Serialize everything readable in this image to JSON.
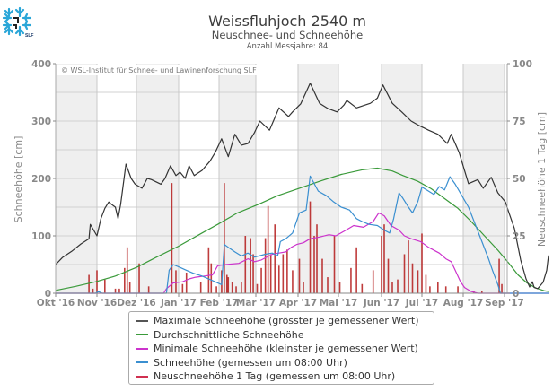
{
  "header": {
    "title": "Weissfluhjoch 2540 m",
    "subtitle": "Neuschnee- und Schneehöhe",
    "years_label": "Anzahl Messjahre: 84",
    "logo_icon": "snowflake-slf-logo"
  },
  "copyright": "© WSL-Institut für Schnee- und Lawinenforschung SLF",
  "chart_data": {
    "type": "line",
    "title": "Weissfluhjoch 2540 m",
    "subtitle": "Neuschnee- und Schneehöhe",
    "annotation": "Anzahl Messjahre: 84",
    "xlabel": "",
    "ylabel": "Schneehöhe [cm]",
    "ylabel_right": "Neuschneehöhe 1 Tag [cm]",
    "ylim": [
      0,
      400
    ],
    "ylim_right": [
      0,
      100
    ],
    "yticks": [
      "0",
      "100",
      "200",
      "300",
      "400"
    ],
    "yticks_right": [
      "0",
      "25",
      "50",
      "75",
      "100"
    ],
    "categories": [
      "Okt '16",
      "Nov '16",
      "Dez '16",
      "Jan '17",
      "Feb '17",
      "Mar '17",
      "Apr '17",
      "Mai '17",
      "Jun '17",
      "Jul '17",
      "Aug '17",
      "Sep '17"
    ],
    "x_unit": "day index from 1 Okt 2016",
    "grid": true,
    "legend_position": "bottom",
    "colors": {
      "max": "#333333",
      "avg": "#3a9a3a",
      "min": "#cc33cc",
      "measured": "#3a8fd0",
      "new_snow": "#b01010"
    },
    "series": [
      {
        "name": "Maximale Schneehöhe (grösster je gemessener Wert)",
        "key": "max",
        "axis": "left",
        "points": [
          [
            0,
            50
          ],
          [
            5,
            62
          ],
          [
            12,
            73
          ],
          [
            19,
            86
          ],
          [
            25,
            95
          ],
          [
            26,
            120
          ],
          [
            31,
            100
          ],
          [
            34,
            130
          ],
          [
            37,
            148
          ],
          [
            40,
            159
          ],
          [
            42,
            155
          ],
          [
            45,
            150
          ],
          [
            47,
            130
          ],
          [
            49,
            155
          ],
          [
            53,
            225
          ],
          [
            57,
            200
          ],
          [
            60,
            190
          ],
          [
            65,
            183
          ],
          [
            69,
            200
          ],
          [
            72,
            198
          ],
          [
            79,
            190
          ],
          [
            82,
            200
          ],
          [
            86,
            222
          ],
          [
            90,
            205
          ],
          [
            93,
            211
          ],
          [
            97,
            200
          ],
          [
            100,
            222
          ],
          [
            104,
            205
          ],
          [
            110,
            214
          ],
          [
            116,
            230
          ],
          [
            120,
            245
          ],
          [
            125,
            269
          ],
          [
            130,
            238
          ],
          [
            135,
            277
          ],
          [
            140,
            258
          ],
          [
            145,
            261
          ],
          [
            150,
            280
          ],
          [
            154,
            300
          ],
          [
            161,
            284
          ],
          [
            168,
            323
          ],
          [
            175,
            308
          ],
          [
            178,
            316
          ],
          [
            184,
            330
          ],
          [
            191,
            366
          ],
          [
            198,
            331
          ],
          [
            204,
            322
          ],
          [
            211,
            316
          ],
          [
            216,
            328
          ],
          [
            218,
            336
          ],
          [
            225,
            323
          ],
          [
            235,
            331
          ],
          [
            240,
            340
          ],
          [
            244,
            363
          ],
          [
            251,
            331
          ],
          [
            258,
            316
          ],
          [
            265,
            300
          ],
          [
            271,
            292
          ],
          [
            278,
            284
          ],
          [
            285,
            277
          ],
          [
            292,
            261
          ],
          [
            295,
            277
          ],
          [
            301,
            245
          ],
          [
            308,
            191
          ],
          [
            315,
            198
          ],
          [
            319,
            183
          ],
          [
            325,
            202
          ],
          [
            330,
            175
          ],
          [
            336,
            159
          ],
          [
            340,
            140
          ],
          [
            346,
            113
          ],
          [
            353,
            58
          ],
          [
            359,
            25
          ],
          [
            363,
            11
          ],
          [
            366,
            20
          ],
          [
            368,
            10
          ],
          [
            372,
            8
          ],
          [
            378,
            19
          ],
          [
            382,
            40
          ],
          [
            384,
            66
          ]
        ]
      },
      {
        "name": "Durchschnittliche Schneehöhe",
        "key": "avg",
        "axis": "left",
        "points": [
          [
            0,
            5
          ],
          [
            15,
            12
          ],
          [
            30,
            20
          ],
          [
            45,
            30
          ],
          [
            61,
            45
          ],
          [
            75,
            62
          ],
          [
            92,
            82
          ],
          [
            110,
            105
          ],
          [
            122,
            120
          ],
          [
            137,
            140
          ],
          [
            153,
            155
          ],
          [
            167,
            170
          ],
          [
            183,
            183
          ],
          [
            198,
            195
          ],
          [
            214,
            207
          ],
          [
            229,
            215
          ],
          [
            240,
            218
          ],
          [
            251,
            213
          ],
          [
            259,
            205
          ],
          [
            270,
            195
          ],
          [
            280,
            182
          ],
          [
            290,
            165
          ],
          [
            300,
            148
          ],
          [
            310,
            125
          ],
          [
            320,
            100
          ],
          [
            330,
            75
          ],
          [
            340,
            52
          ],
          [
            350,
            32
          ],
          [
            360,
            18
          ],
          [
            370,
            9
          ],
          [
            380,
            4
          ],
          [
            385,
            3
          ]
        ]
      },
      {
        "name": "Minimale Schneehöhe (kleinster je gemessener Wert)",
        "key": "min",
        "axis": "left",
        "points": [
          [
            0,
            0
          ],
          [
            60,
            0
          ],
          [
            81,
            0
          ],
          [
            83,
            8
          ],
          [
            88,
            18
          ],
          [
            95,
            20
          ],
          [
            100,
            25
          ],
          [
            105,
            28
          ],
          [
            112,
            30
          ],
          [
            118,
            32
          ],
          [
            122,
            48
          ],
          [
            128,
            50
          ],
          [
            138,
            52
          ],
          [
            145,
            60
          ],
          [
            150,
            55
          ],
          [
            155,
            58
          ],
          [
            163,
            68
          ],
          [
            168,
            70
          ],
          [
            173,
            72
          ],
          [
            177,
            80
          ],
          [
            181,
            85
          ],
          [
            186,
            88
          ],
          [
            191,
            95
          ],
          [
            198,
            98
          ],
          [
            205,
            102
          ],
          [
            210,
            100
          ],
          [
            216,
            108
          ],
          [
            223,
            118
          ],
          [
            230,
            115
          ],
          [
            237,
            125
          ],
          [
            241,
            140
          ],
          [
            245,
            135
          ],
          [
            250,
            118
          ],
          [
            256,
            110
          ],
          [
            260,
            100
          ],
          [
            265,
            95
          ],
          [
            272,
            90
          ],
          [
            278,
            80
          ],
          [
            286,
            70
          ],
          [
            291,
            60
          ],
          [
            295,
            55
          ],
          [
            298,
            40
          ],
          [
            302,
            20
          ],
          [
            305,
            10
          ],
          [
            310,
            3
          ],
          [
            315,
            0
          ],
          [
            385,
            0
          ]
        ]
      },
      {
        "name": "Schneehöhe (gemessen um 08:00 Uhr)",
        "key": "measured",
        "axis": "left",
        "points": [
          [
            0,
            0
          ],
          [
            30,
            0
          ],
          [
            32,
            3
          ],
          [
            35,
            0
          ],
          [
            60,
            0
          ],
          [
            83,
            0
          ],
          [
            85,
            40
          ],
          [
            88,
            50
          ],
          [
            93,
            45
          ],
          [
            98,
            40
          ],
          [
            103,
            35
          ],
          [
            110,
            30
          ],
          [
            120,
            20
          ],
          [
            125,
            15
          ],
          [
            127,
            85
          ],
          [
            130,
            80
          ],
          [
            135,
            72
          ],
          [
            140,
            65
          ],
          [
            145,
            70
          ],
          [
            150,
            63
          ],
          [
            158,
            68
          ],
          [
            163,
            70
          ],
          [
            167,
            65
          ],
          [
            169,
            90
          ],
          [
            173,
            95
          ],
          [
            178,
            105
          ],
          [
            183,
            140
          ],
          [
            188,
            145
          ],
          [
            191,
            204
          ],
          [
            197,
            178
          ],
          [
            203,
            170
          ],
          [
            208,
            160
          ],
          [
            214,
            150
          ],
          [
            220,
            145
          ],
          [
            225,
            130
          ],
          [
            229,
            125
          ],
          [
            234,
            120
          ],
          [
            240,
            118
          ],
          [
            245,
            110
          ],
          [
            249,
            105
          ],
          [
            252,
            130
          ],
          [
            256,
            175
          ],
          [
            259,
            165
          ],
          [
            263,
            150
          ],
          [
            266,
            140
          ],
          [
            270,
            160
          ],
          [
            273,
            185
          ],
          [
            278,
            178
          ],
          [
            282,
            172
          ],
          [
            286,
            186
          ],
          [
            290,
            180
          ],
          [
            294,
            203
          ],
          [
            298,
            190
          ],
          [
            303,
            170
          ],
          [
            308,
            150
          ],
          [
            313,
            120
          ],
          [
            318,
            90
          ],
          [
            323,
            60
          ],
          [
            326,
            40
          ],
          [
            330,
            15
          ],
          [
            332,
            0
          ],
          [
            385,
            0
          ]
        ]
      },
      {
        "name": "Neuschneehöhe 1 Tag (gemessen um 08:00 Uhr)",
        "key": "new_snow",
        "axis": "right",
        "type": "bar",
        "points": [
          [
            25,
            8
          ],
          [
            28,
            2
          ],
          [
            31,
            10
          ],
          [
            37,
            6
          ],
          [
            45,
            2
          ],
          [
            48,
            2
          ],
          [
            52,
            11
          ],
          [
            54,
            20
          ],
          [
            56,
            5
          ],
          [
            63,
            13
          ],
          [
            70,
            3
          ],
          [
            87,
            48
          ],
          [
            90,
            10
          ],
          [
            95,
            4
          ],
          [
            98,
            9
          ],
          [
            109,
            5
          ],
          [
            115,
            20
          ],
          [
            117,
            13
          ],
          [
            121,
            3
          ],
          [
            125,
            10
          ],
          [
            127,
            48
          ],
          [
            129,
            8
          ],
          [
            130,
            7
          ],
          [
            133,
            5
          ],
          [
            136,
            3
          ],
          [
            140,
            5
          ],
          [
            143,
            25
          ],
          [
            147,
            24
          ],
          [
            149,
            17
          ],
          [
            152,
            4
          ],
          [
            155,
            11
          ],
          [
            158,
            24
          ],
          [
            160,
            38
          ],
          [
            162,
            17
          ],
          [
            165,
            30
          ],
          [
            168,
            12
          ],
          [
            171,
            17
          ],
          [
            174,
            19
          ],
          [
            178,
            10
          ],
          [
            183,
            15
          ],
          [
            186,
            5
          ],
          [
            191,
            40
          ],
          [
            194,
            25
          ],
          [
            196,
            30
          ],
          [
            200,
            15
          ],
          [
            204,
            7
          ],
          [
            209,
            25
          ],
          [
            213,
            5
          ],
          [
            221,
            11
          ],
          [
            225,
            20
          ],
          [
            229,
            4
          ],
          [
            237,
            10
          ],
          [
            243,
            25
          ],
          [
            245,
            30
          ],
          [
            248,
            15
          ],
          [
            251,
            5
          ],
          [
            255,
            6
          ],
          [
            260,
            17
          ],
          [
            263,
            23
          ],
          [
            266,
            13
          ],
          [
            270,
            10
          ],
          [
            273,
            26
          ],
          [
            276,
            8
          ],
          [
            279,
            3
          ],
          [
            285,
            5
          ],
          [
            291,
            3
          ],
          [
            300,
            3
          ],
          [
            312,
            1
          ],
          [
            318,
            1
          ],
          [
            331,
            15
          ],
          [
            333,
            4
          ]
        ]
      }
    ]
  },
  "legend": {
    "items": [
      {
        "label": "Maximale Schneehöhe (grösster je gemessener Wert)",
        "color": "#333333"
      },
      {
        "label": "Durchschnittliche Schneehöhe",
        "color": "#3a9a3a"
      },
      {
        "label": "Minimale Schneehöhe (kleinster je gemessener Wert)",
        "color": "#cc33cc"
      },
      {
        "label": "Schneehöhe (gemessen um 08:00 Uhr)",
        "color": "#3a8fd0"
      },
      {
        "label": "Neuschneehöhe 1 Tag (gemessen um 08:00 Uhr)",
        "color": "#b01010"
      }
    ]
  }
}
